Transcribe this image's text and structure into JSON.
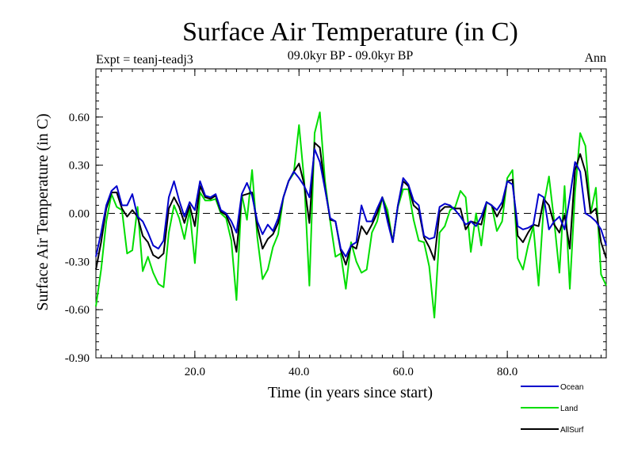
{
  "chart_data": {
    "type": "line",
    "title": "Surface Air Temperature (in C)",
    "subtitle_left": "Expt = teanj-teadj3",
    "subtitle_center": "09.0kyr BP - 09.0kyr BP",
    "subtitle_right": "Ann",
    "xlabel": "Time (in years since start)",
    "ylabel": "Surface Air Temperature (in C)",
    "xlim": [
      1,
      99
    ],
    "ylim": [
      -0.9,
      0.9
    ],
    "xticks": [
      20,
      40,
      60,
      80
    ],
    "xtick_labels": [
      "20.0",
      "40.0",
      "60.0",
      "80.0"
    ],
    "yticks": [
      -0.9,
      -0.6,
      -0.3,
      0.0,
      0.3,
      0.6
    ],
    "ytick_labels": [
      "-0.90",
      "-0.60",
      "-0.30",
      "0.00",
      "0.30",
      "0.60"
    ],
    "zero_line": "dashed",
    "legend_position": "bottom-right",
    "x": [
      1,
      2,
      3,
      4,
      5,
      6,
      7,
      8,
      9,
      10,
      11,
      12,
      13,
      14,
      15,
      16,
      17,
      18,
      19,
      20,
      21,
      22,
      23,
      24,
      25,
      26,
      27,
      28,
      29,
      30,
      31,
      32,
      33,
      34,
      35,
      36,
      37,
      38,
      39,
      40,
      41,
      42,
      43,
      44,
      45,
      46,
      47,
      48,
      49,
      50,
      51,
      52,
      53,
      54,
      55,
      56,
      57,
      58,
      59,
      60,
      61,
      62,
      63,
      64,
      65,
      66,
      67,
      68,
      69,
      70,
      71,
      72,
      73,
      74,
      75,
      76,
      77,
      78,
      79,
      80,
      81,
      82,
      83,
      84,
      85,
      86,
      87,
      88,
      89,
      90,
      91,
      92,
      93,
      94,
      95,
      96,
      97,
      98,
      99
    ],
    "series": [
      {
        "name": "Ocean",
        "color": "#0000cc",
        "values": [
          -0.27,
          -0.12,
          0.05,
          0.14,
          0.17,
          0.05,
          0.05,
          0.12,
          -0.02,
          -0.05,
          -0.12,
          -0.2,
          -0.22,
          -0.17,
          0.1,
          0.2,
          0.08,
          -0.02,
          0.07,
          0.02,
          0.2,
          0.11,
          0.1,
          0.12,
          0.02,
          0.0,
          -0.05,
          -0.12,
          0.12,
          0.19,
          0.11,
          -0.05,
          -0.13,
          -0.07,
          -0.11,
          -0.03,
          0.1,
          0.2,
          0.26,
          0.22,
          0.17,
          0.1,
          0.4,
          0.32,
          0.15,
          -0.03,
          -0.05,
          -0.22,
          -0.27,
          -0.2,
          -0.18,
          0.05,
          -0.05,
          -0.05,
          0.03,
          0.1,
          -0.05,
          -0.18,
          0.05,
          0.22,
          0.18,
          0.08,
          0.05,
          -0.14,
          -0.16,
          -0.15,
          0.04,
          0.06,
          0.05,
          0.02,
          -0.02,
          -0.07,
          -0.05,
          -0.08,
          -0.02,
          0.07,
          0.05,
          0.02,
          0.07,
          0.2,
          0.18,
          -0.08,
          -0.1,
          -0.09,
          -0.07,
          0.12,
          0.1,
          -0.1,
          -0.05,
          -0.02,
          -0.1,
          0.1,
          0.32,
          0.26,
          0.0,
          -0.02,
          -0.05,
          -0.1,
          -0.2
        ]
      },
      {
        "name": "Land",
        "color": "#00dd00",
        "values": [
          -0.58,
          -0.35,
          -0.05,
          0.12,
          0.04,
          0.02,
          -0.25,
          -0.23,
          0.04,
          -0.36,
          -0.27,
          -0.37,
          -0.44,
          -0.46,
          -0.12,
          0.05,
          -0.03,
          -0.16,
          0.02,
          -0.31,
          0.13,
          0.08,
          0.08,
          0.09,
          0.0,
          -0.03,
          -0.17,
          -0.54,
          0.12,
          -0.04,
          0.27,
          -0.15,
          -0.41,
          -0.35,
          -0.21,
          -0.13,
          0.1,
          0.2,
          0.25,
          0.55,
          0.2,
          -0.45,
          0.5,
          0.63,
          0.2,
          -0.05,
          -0.27,
          -0.25,
          -0.47,
          -0.18,
          -0.3,
          -0.37,
          -0.35,
          -0.12,
          -0.05,
          0.1,
          0.02,
          -0.18,
          0.04,
          0.15,
          0.15,
          -0.04,
          -0.17,
          -0.18,
          -0.33,
          -0.65,
          -0.12,
          -0.08,
          0.02,
          0.04,
          0.14,
          0.1,
          -0.24,
          0.0,
          -0.2,
          0.07,
          0.05,
          -0.11,
          -0.05,
          0.22,
          0.27,
          -0.28,
          -0.35,
          -0.2,
          -0.08,
          -0.45,
          0.05,
          0.23,
          -0.05,
          -0.37,
          0.17,
          -0.47,
          0.13,
          0.5,
          0.42,
          0.0,
          0.16,
          -0.38,
          -0.45
        ]
      },
      {
        "name": "AllSurf",
        "color": "#000000",
        "values": [
          -0.35,
          -0.18,
          0.03,
          0.13,
          0.13,
          0.03,
          -0.02,
          0.02,
          -0.02,
          -0.14,
          -0.18,
          -0.26,
          -0.28,
          -0.25,
          0.03,
          0.1,
          0.04,
          -0.06,
          0.05,
          -0.08,
          0.17,
          0.1,
          0.09,
          0.11,
          0.01,
          -0.01,
          -0.09,
          -0.24,
          0.11,
          0.12,
          0.13,
          -0.08,
          -0.22,
          -0.16,
          -0.13,
          -0.06,
          0.1,
          0.2,
          0.26,
          0.31,
          0.18,
          -0.06,
          0.44,
          0.41,
          0.16,
          -0.04,
          -0.05,
          -0.23,
          -0.32,
          -0.2,
          -0.22,
          -0.08,
          -0.13,
          -0.07,
          0.0,
          0.1,
          -0.02,
          -0.18,
          0.05,
          0.2,
          0.17,
          0.05,
          0.02,
          -0.15,
          -0.21,
          -0.29,
          0.01,
          0.04,
          0.04,
          0.03,
          0.03,
          -0.1,
          -0.05,
          -0.06,
          -0.07,
          0.07,
          0.05,
          -0.02,
          0.04,
          0.2,
          0.21,
          -0.14,
          -0.18,
          -0.12,
          -0.07,
          -0.08,
          0.09,
          0.05,
          -0.07,
          -0.12,
          -0.01,
          -0.22,
          0.27,
          0.37,
          0.26,
          0.0,
          0.03,
          -0.18,
          -0.28
        ]
      }
    ]
  }
}
